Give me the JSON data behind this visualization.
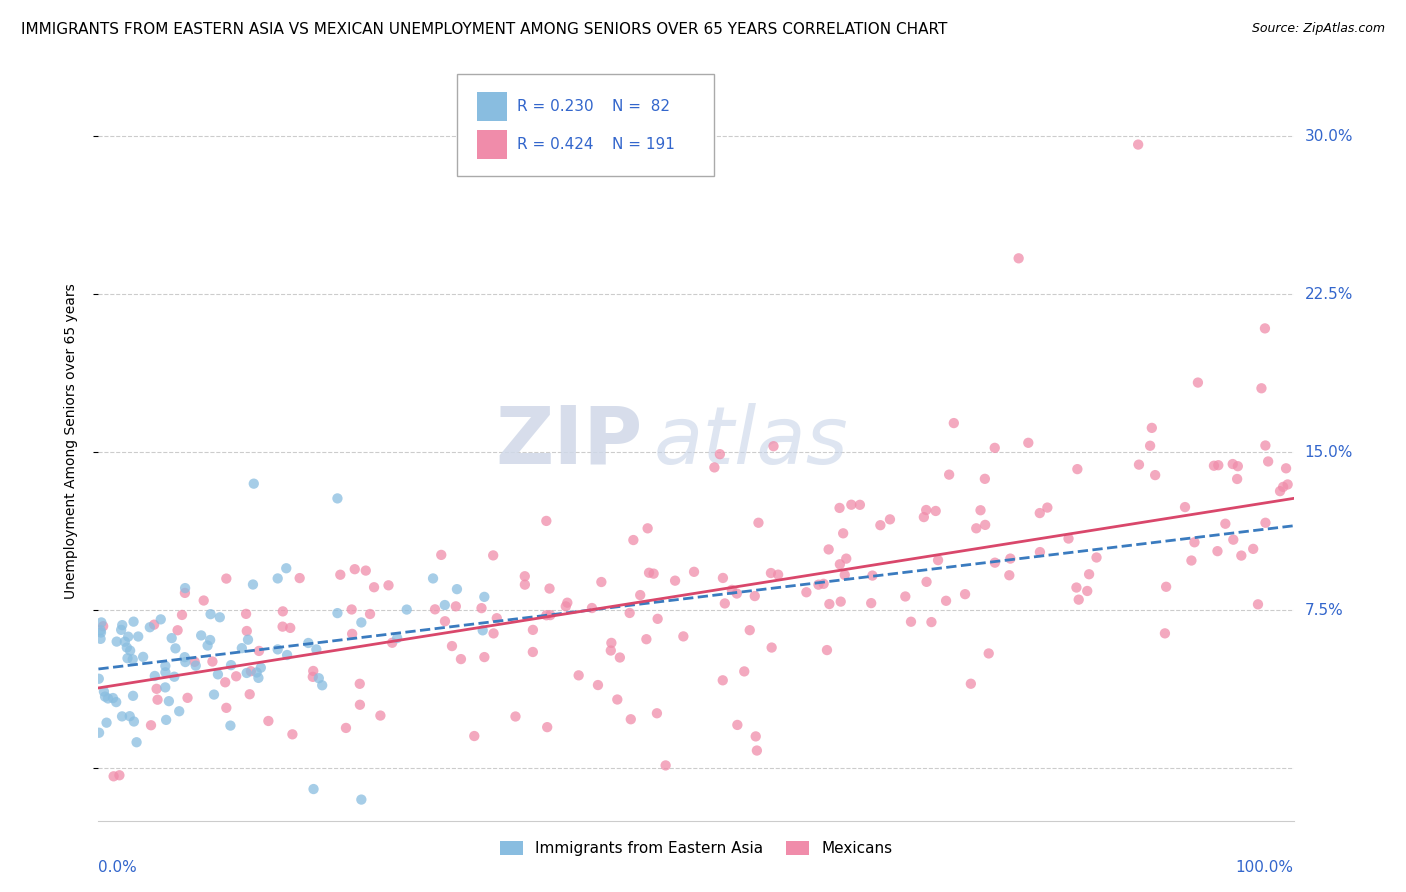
{
  "title": "IMMIGRANTS FROM EASTERN ASIA VS MEXICAN UNEMPLOYMENT AMONG SENIORS OVER 65 YEARS CORRELATION CHART",
  "source": "Source: ZipAtlas.com",
  "ylabel": "Unemployment Among Seniors over 65 years",
  "xlim": [
    0.0,
    1.0
  ],
  "ylim": [
    -0.025,
    0.335
  ],
  "yticks": [
    0.0,
    0.075,
    0.15,
    0.225,
    0.3
  ],
  "ytick_labels": [
    "",
    "7.5%",
    "15.0%",
    "22.5%",
    "30.0%"
  ],
  "watermark_zip": "ZIP",
  "watermark_atlas": "atlas",
  "legend_labels": [
    "Immigrants from Eastern Asia",
    "Mexicans"
  ],
  "blue_scatter_color": "#89bde0",
  "pink_scatter_color": "#f08caa",
  "blue_line_color": "#3a7bbf",
  "pink_line_color": "#d9476b",
  "blue_line_start_x": 0.0,
  "blue_line_start_y": 0.047,
  "blue_line_end_x": 1.0,
  "blue_line_end_y": 0.115,
  "pink_line_start_x": 0.0,
  "pink_line_start_y": 0.038,
  "pink_line_end_x": 1.0,
  "pink_line_end_y": 0.128,
  "background_color": "#ffffff",
  "grid_color": "#cccccc",
  "title_fontsize": 11,
  "source_fontsize": 9,
  "axis_label_fontsize": 10,
  "tick_fontsize": 11,
  "legend_text_color": "#3366cc",
  "legend_R1": "R = 0.230",
  "legend_N1": "N =  82",
  "legend_R2": "R = 0.424",
  "legend_N2": "N = 191"
}
